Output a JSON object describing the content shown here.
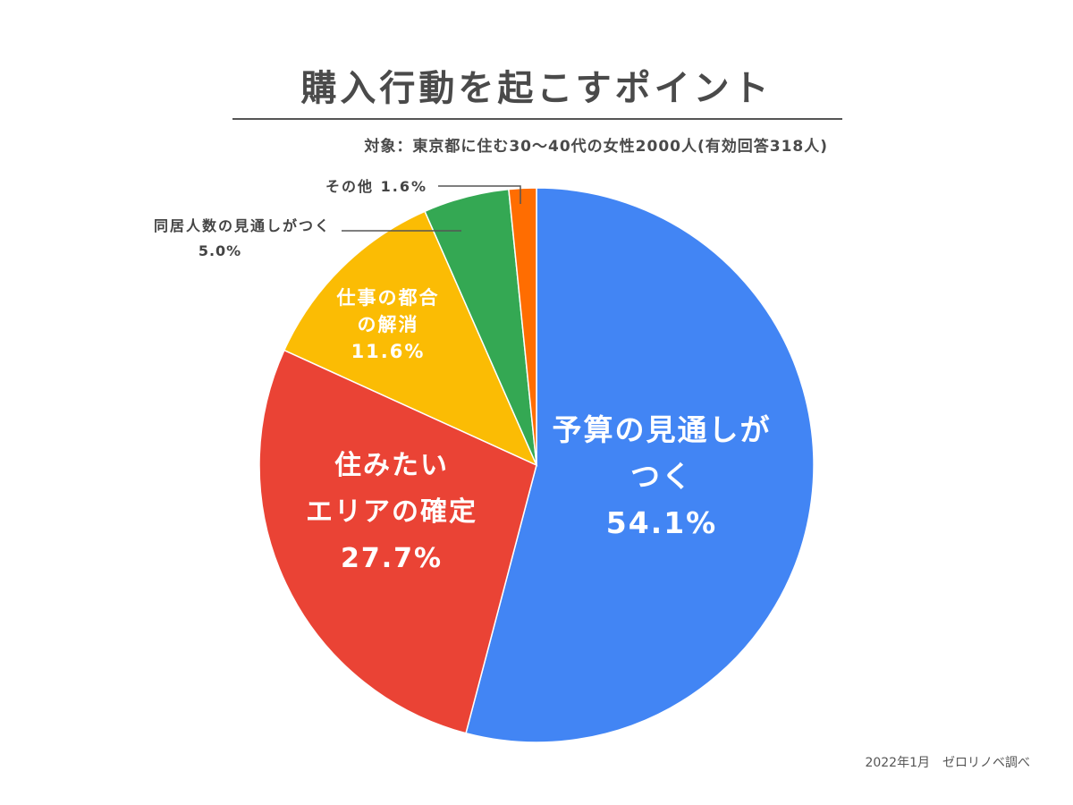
{
  "chart_data": {
    "type": "pie",
    "title": "購入行動を起こすポイント",
    "subtitle": "対象：東京都に住む30〜40代の女性2000人(有効回答318人)",
    "source": "2022年1月　ゼロリノベ調べ",
    "start": "12 o'clock",
    "direction": "clockwise",
    "slices": [
      {
        "name": "slice-budget",
        "label_lines": [
          "予算の見通しが",
          "つく"
        ],
        "value": 54.1,
        "value_label": "54.1%",
        "color": "#4285f4",
        "label_color": "#ffffff",
        "label_placement": "inside"
      },
      {
        "name": "slice-area",
        "label_lines": [
          "住みたい",
          "エリアの確定"
        ],
        "value": 27.7,
        "value_label": "27.7%",
        "color": "#ea4335",
        "label_color": "#ffffff",
        "label_placement": "inside"
      },
      {
        "name": "slice-work",
        "label_lines": [
          "仕事の都合",
          "の解消"
        ],
        "value": 11.6,
        "value_label": "11.6%",
        "color": "#fbbc04",
        "label_color": "#ffffff",
        "label_placement": "inside"
      },
      {
        "name": "slice-household",
        "label_lines": [
          "同居人数の見通しがつく"
        ],
        "value": 5.0,
        "value_label": "5.0%",
        "color": "#34a853",
        "label_color": "#444444",
        "label_placement": "outside-left"
      },
      {
        "name": "slice-other",
        "label_lines": [
          "その他"
        ],
        "value": 1.6,
        "value_label": "1.6%",
        "color": "#ff6d01",
        "label_color": "#444444",
        "label_placement": "outside-left"
      }
    ]
  }
}
